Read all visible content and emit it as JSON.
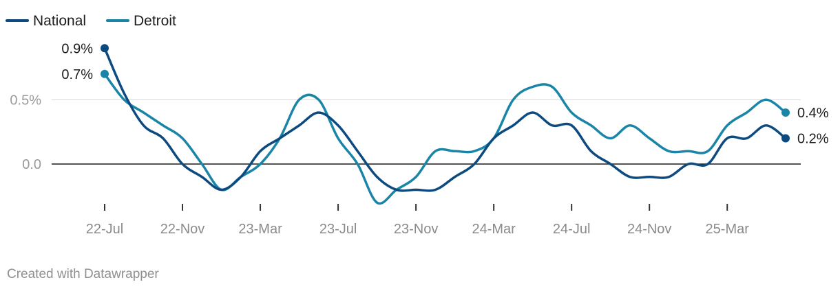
{
  "chart_data": {
    "type": "line",
    "title": "",
    "xlabel": "",
    "ylabel": "",
    "ylim": [
      -0.35,
      1.0
    ],
    "y_ticks": [
      {
        "value": 0.5,
        "label": "0.5%"
      },
      {
        "value": 0.0,
        "label": "0.0"
      }
    ],
    "x_ticks": [
      {
        "index": 0,
        "label": "22-Jul"
      },
      {
        "index": 4,
        "label": "22-Nov"
      },
      {
        "index": 8,
        "label": "23-Mar"
      },
      {
        "index": 12,
        "label": "23-Jul"
      },
      {
        "index": 16,
        "label": "23-Nov"
      },
      {
        "index": 20,
        "label": "24-Mar"
      },
      {
        "index": 24,
        "label": "24-Jul"
      },
      {
        "index": 28,
        "label": "24-Nov"
      },
      {
        "index": 32,
        "label": "25-Mar"
      }
    ],
    "x": [
      "2022-07",
      "2022-08",
      "2022-09",
      "2022-10",
      "2022-11",
      "2022-12",
      "2023-01",
      "2023-02",
      "2023-03",
      "2023-04",
      "2023-05",
      "2023-06",
      "2023-07",
      "2023-08",
      "2023-09",
      "2023-10",
      "2023-11",
      "2023-12",
      "2024-01",
      "2024-02",
      "2024-03",
      "2024-04",
      "2024-05",
      "2024-06",
      "2024-07",
      "2024-08",
      "2024-09",
      "2024-10",
      "2024-11",
      "2024-12",
      "2025-01",
      "2025-02",
      "2025-03",
      "2025-04",
      "2025-05",
      "2025-06"
    ],
    "series": [
      {
        "name": "National",
        "color": "#0d4a7f",
        "values": [
          0.9,
          0.55,
          0.3,
          0.2,
          0.0,
          -0.1,
          -0.2,
          -0.1,
          0.1,
          0.2,
          0.3,
          0.4,
          0.3,
          0.1,
          -0.1,
          -0.2,
          -0.2,
          -0.2,
          -0.1,
          0.0,
          0.2,
          0.3,
          0.4,
          0.3,
          0.3,
          0.1,
          0.0,
          -0.1,
          -0.1,
          -0.1,
          0.0,
          0.0,
          0.2,
          0.2,
          0.3,
          0.2
        ],
        "end_label": "0.2%",
        "start_label": "0.9%"
      },
      {
        "name": "Detroit",
        "color": "#1a85a6",
        "values": [
          0.7,
          0.5,
          0.4,
          0.3,
          0.2,
          0.0,
          -0.2,
          -0.1,
          0.0,
          0.2,
          0.5,
          0.5,
          0.2,
          0.0,
          -0.3,
          -0.2,
          -0.1,
          0.1,
          0.1,
          0.1,
          0.2,
          0.5,
          0.6,
          0.6,
          0.4,
          0.3,
          0.2,
          0.3,
          0.2,
          0.1,
          0.1,
          0.1,
          0.3,
          0.4,
          0.5,
          0.4
        ],
        "end_label": "0.4%",
        "start_label": "0.7%"
      }
    ],
    "legend": {
      "position": "top-left"
    },
    "grid": true
  },
  "footer": "Created with Datawrapper"
}
